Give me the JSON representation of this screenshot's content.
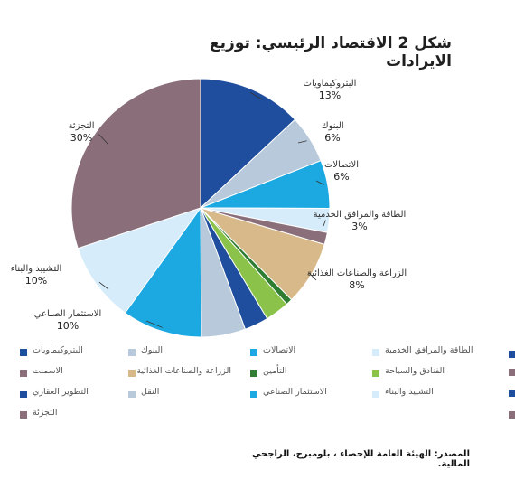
{
  "chart_data": {
    "type": "pie",
    "title": "شكل 2  الاقتصاد الرئيسي: توزيع الايرادات",
    "slices": [
      {
        "name": "البتروكيماويات",
        "value": 13,
        "color": "#1f4e9e",
        "label": "البتروكيماويات",
        "pct_label": "13%"
      },
      {
        "name": "البنوك",
        "value": 6,
        "color": "#b7c9da",
        "label": "البنوك",
        "pct_label": "6%"
      },
      {
        "name": "الاتصالات",
        "value": 6,
        "color": "#1ca9e1",
        "label": "الاتصالات",
        "pct_label": "6%"
      },
      {
        "name": "الطاقة والمرافق الخدمية",
        "value": 3,
        "color": "#d6ecfa",
        "label": "الطاقة والمرافق الخدمية",
        "pct_label": "3%"
      },
      {
        "name": "الاسمنت",
        "value": 1.5,
        "color": "#8a6f7b",
        "label": "",
        "pct_label": ""
      },
      {
        "name": "الزراعة والصناعات الغذائية",
        "value": 8,
        "color": "#d8b98a",
        "label": "الزراعة والصناعات الغذائية",
        "pct_label": "8%"
      },
      {
        "name": "التأمين",
        "value": 0.8,
        "color": "#2e7d32",
        "label": "",
        "pct_label": ""
      },
      {
        "name": "الفنادق والسياحة",
        "value": 3,
        "color": "#8bc34a",
        "label": "",
        "pct_label": ""
      },
      {
        "name": "التطوير العقاري",
        "value": 3,
        "color": "#1f4e9e",
        "label": "",
        "pct_label": ""
      },
      {
        "name": "النقل",
        "value": 5.5,
        "color": "#b7c9da",
        "label": "",
        "pct_label": ""
      },
      {
        "name": "الاستثمار الصناعي",
        "value": 10,
        "color": "#1ca9e1",
        "label": "الاستثمار الصناعي",
        "pct_label": "10%"
      },
      {
        "name": "التشييد والبناء",
        "value": 10,
        "color": "#d6ecfa",
        "label": "التشييد والبناء",
        "pct_label": "10%"
      },
      {
        "name": "التجزئة",
        "value": 30,
        "color": "#8a6f7b",
        "label": "التجزئة",
        "pct_label": "30%"
      }
    ]
  },
  "legend": [
    {
      "label": "البتروكيماويات",
      "color": "#1f4e9e"
    },
    {
      "label": "البنوك",
      "color": "#b7c9da"
    },
    {
      "label": "الاتصالات",
      "color": "#1ca9e1"
    },
    {
      "label": "الطاقة والمرافق الخدمية",
      "color": "#d6ecfa"
    },
    {
      "label": "الاسمنت",
      "color": "#8a6f7b"
    },
    {
      "label": "الزراعة والصناعات الغذائية",
      "color": "#d8b98a"
    },
    {
      "label": "التأمين",
      "color": "#2e7d32"
    },
    {
      "label": "الفنادق والسياحة",
      "color": "#8bc34a"
    },
    {
      "label": "التطوير العقاري",
      "color": "#1f4e9e"
    },
    {
      "label": "النقل",
      "color": "#b7c9da"
    },
    {
      "label": "الاستثمار الصناعي",
      "color": "#1ca9e1"
    },
    {
      "label": "التشييد والبناء",
      "color": "#d6ecfa"
    },
    {
      "label": "التجزئة",
      "color": "#8a6f7b"
    }
  ],
  "source": "المصدر: الهيئة العامة للإحصاء ، بلومبرج، الراجحي المالية."
}
